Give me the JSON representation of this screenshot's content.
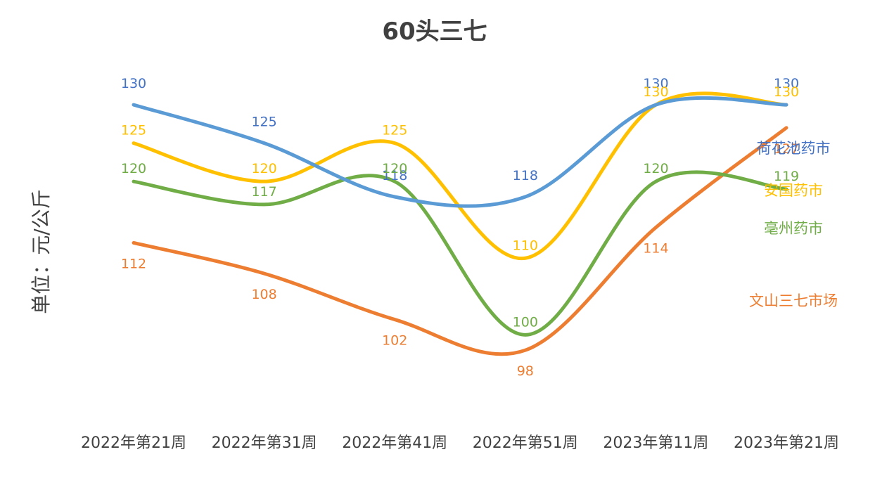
{
  "chart_data": {
    "type": "line",
    "title": "60头三七",
    "ylabel": "单位：元/公斤",
    "xlabel": "",
    "categories": [
      "2022年第21周",
      "2022年第31周",
      "2022年第41周",
      "2022年第51周",
      "2023年第11周",
      "2023年第21周"
    ],
    "ylim": [
      85,
      140
    ],
    "smooth": true,
    "grid": false,
    "legend_position": "right, at line ends",
    "series": [
      {
        "name": "荷花池药市",
        "color": "#5B9BD5",
        "text_color": "#4472C4",
        "values": [
          130,
          125,
          118,
          118,
          130,
          130
        ]
      },
      {
        "name": "安国药市",
        "color": "#FFC000",
        "text_color": "#FFC000",
        "values": [
          125,
          120,
          125,
          110,
          130,
          130
        ]
      },
      {
        "name": "亳州药市",
        "color": "#70AD47",
        "text_color": "#70AD47",
        "values": [
          120,
          117,
          120,
          100,
          120,
          119
        ]
      },
      {
        "name": "文山三七市场",
        "color": "#ED7D31",
        "text_color": "#ED7D31",
        "values": [
          112,
          108,
          102,
          98,
          114,
          127
        ]
      }
    ]
  }
}
